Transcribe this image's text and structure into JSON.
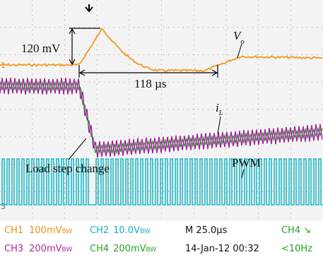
{
  "annotations": {
    "amplitude": "120 mV",
    "interval": "118 µs",
    "vo": {
      "symbol": "V",
      "sub": "o"
    },
    "il": {
      "symbol": "i",
      "sub": "L"
    },
    "load_step": "Load step change",
    "pwm": "PWM"
  },
  "markers": {
    "ch1": "1",
    "ch3": "3"
  },
  "status": {
    "row1": {
      "ch1": {
        "name": "CH1",
        "scale": "100mV",
        "bw": "BW"
      },
      "ch2": {
        "name": "CH2",
        "scale": "10.0V",
        "bw": "BW"
      },
      "timebase": "M 25.0µs",
      "trigger": "CH4 ↘"
    },
    "row2": {
      "ch3": {
        "name": "CH3",
        "scale": "200mV",
        "bw": "BW"
      },
      "ch4": {
        "name": "CH4",
        "scale": "200mV",
        "bw": "BW"
      },
      "date": "14-Jan-12 00:32",
      "freq": "<10Hz"
    }
  }
}
